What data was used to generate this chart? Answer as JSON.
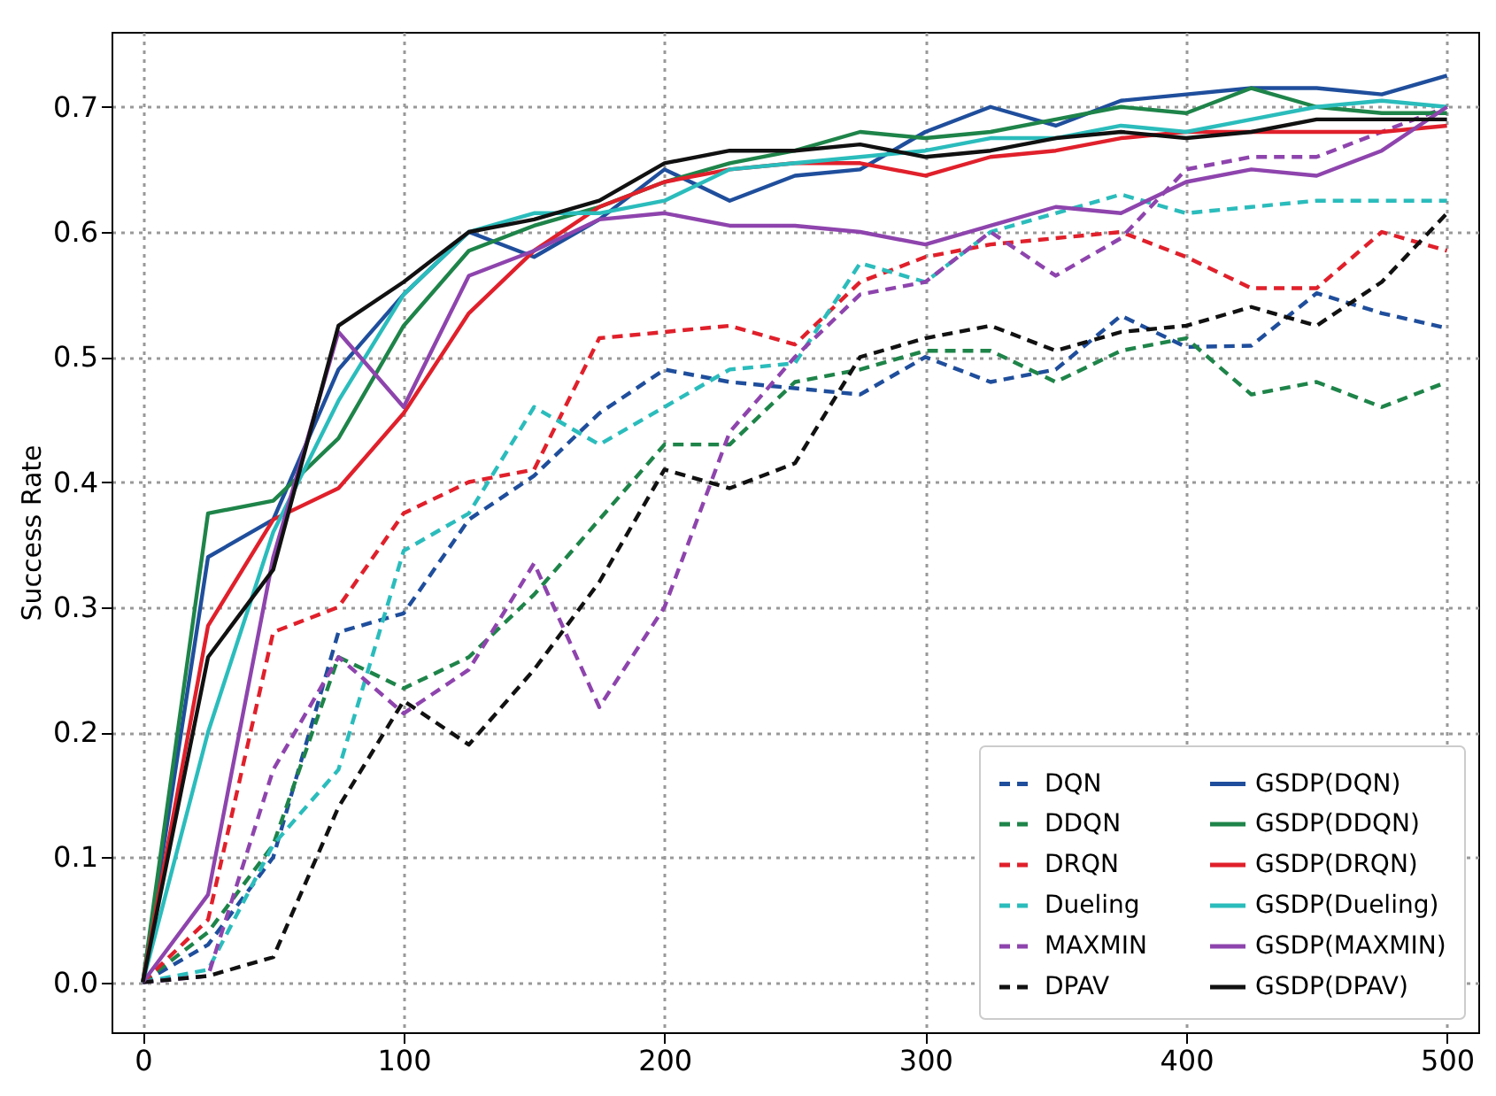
{
  "chart_data": {
    "type": "line",
    "ylabel": "Success Rate",
    "x": [
      0,
      25,
      50,
      75,
      100,
      125,
      150,
      175,
      200,
      225,
      250,
      275,
      300,
      325,
      350,
      375,
      400,
      425,
      450,
      475,
      500
    ],
    "xlim": [
      -12,
      512
    ],
    "xticks": [
      0,
      100,
      200,
      300,
      400,
      500
    ],
    "ylim": [
      -0.04,
      0.76
    ],
    "yticks": [
      {
        "value": 0,
        "label": "0.0"
      },
      {
        "value": 0.1,
        "label": "0.1"
      },
      {
        "value": 0.2,
        "label": "0.2"
      },
      {
        "value": 0.3,
        "label": "0.3"
      },
      {
        "value": 0.4,
        "label": "0.4"
      },
      {
        "value": 0.5,
        "label": "0.5"
      },
      {
        "value": 0.6,
        "label": "0.6"
      },
      {
        "value": 0.7,
        "label": "0.7"
      }
    ],
    "grid": true,
    "legend": "bottom right",
    "series": [
      {
        "name": "DQN",
        "color": "#1f4e9c",
        "line_style": "dashed",
        "values": [
          0,
          0.03,
          0.1,
          0.28,
          0.295,
          0.37,
          0.405,
          0.455,
          0.49,
          0.48,
          0.475,
          0.47,
          0.5,
          0.48,
          0.49,
          0.533,
          0.508,
          0.509,
          0.551,
          0.535,
          0.523
        ]
      },
      {
        "name": "DDQN",
        "color": "#1e8449",
        "line_style": "dashed",
        "values": [
          0,
          0.04,
          0.11,
          0.26,
          0.235,
          0.26,
          0.31,
          0.37,
          0.43,
          0.43,
          0.48,
          0.49,
          0.505,
          0.505,
          0.48,
          0.505,
          0.515,
          0.47,
          0.48,
          0.46,
          0.48
        ]
      },
      {
        "name": "DRQN",
        "color": "#e0202b",
        "line_style": "dashed",
        "values": [
          0,
          0.05,
          0.28,
          0.3,
          0.375,
          0.4,
          0.41,
          0.515,
          0.52,
          0.525,
          0.51,
          0.56,
          0.58,
          0.59,
          0.595,
          0.6,
          0.58,
          0.555,
          0.555,
          0.6,
          0.585
        ]
      },
      {
        "name": "Dueling",
        "color": "#2bbcbc",
        "line_style": "dashed",
        "values": [
          0,
          0.01,
          0.11,
          0.17,
          0.345,
          0.375,
          0.46,
          0.43,
          0.46,
          0.49,
          0.495,
          0.575,
          0.56,
          0.6,
          0.615,
          0.63,
          0.615,
          0.62,
          0.625,
          0.625,
          0.625
        ]
      },
      {
        "name": "MAXMIN",
        "color": "#8e44ad",
        "line_style": "dashed",
        "values": [
          0,
          0.005,
          0.17,
          0.26,
          0.215,
          0.25,
          0.335,
          0.22,
          0.3,
          0.44,
          0.5,
          0.55,
          0.56,
          0.6,
          0.565,
          0.595,
          0.65,
          0.66,
          0.66,
          0.68,
          0.7
        ]
      },
      {
        "name": "DPAV",
        "color": "#111111",
        "line_style": "dashed",
        "values": [
          0,
          0.005,
          0.02,
          0.14,
          0.225,
          0.19,
          0.25,
          0.32,
          0.41,
          0.395,
          0.415,
          0.5,
          0.515,
          0.525,
          0.505,
          0.52,
          0.525,
          0.54,
          0.525,
          0.56,
          0.615
        ]
      },
      {
        "name": "GSDP(DQN)",
        "color": "#1f4e9c",
        "line_style": "solid",
        "values": [
          0,
          0.34,
          0.37,
          0.49,
          0.55,
          0.6,
          0.58,
          0.61,
          0.65,
          0.625,
          0.645,
          0.65,
          0.68,
          0.7,
          0.685,
          0.705,
          0.71,
          0.715,
          0.715,
          0.71,
          0.725
        ]
      },
      {
        "name": "GSDP(DDQN)",
        "color": "#1e8449",
        "line_style": "solid",
        "values": [
          0,
          0.375,
          0.385,
          0.435,
          0.525,
          0.585,
          0.605,
          0.62,
          0.64,
          0.655,
          0.665,
          0.68,
          0.675,
          0.68,
          0.69,
          0.7,
          0.695,
          0.715,
          0.7,
          0.695,
          0.695
        ]
      },
      {
        "name": "GSDP(DRQN)",
        "color": "#e0202b",
        "line_style": "solid",
        "values": [
          0,
          0.285,
          0.37,
          0.395,
          0.455,
          0.535,
          0.585,
          0.62,
          0.64,
          0.65,
          0.655,
          0.655,
          0.645,
          0.66,
          0.665,
          0.675,
          0.68,
          0.68,
          0.68,
          0.68,
          0.685
        ]
      },
      {
        "name": "GSDP(Dueling)",
        "color": "#2bbcbc",
        "line_style": "solid",
        "values": [
          0,
          0.2,
          0.36,
          0.465,
          0.55,
          0.6,
          0.615,
          0.615,
          0.625,
          0.65,
          0.655,
          0.66,
          0.665,
          0.675,
          0.675,
          0.685,
          0.68,
          0.69,
          0.7,
          0.705,
          0.7
        ]
      },
      {
        "name": "GSDP(MAXMIN)",
        "color": "#8e44ad",
        "line_style": "solid",
        "values": [
          0,
          0.07,
          0.34,
          0.52,
          0.46,
          0.565,
          0.585,
          0.61,
          0.615,
          0.605,
          0.605,
          0.6,
          0.59,
          0.605,
          0.62,
          0.615,
          0.64,
          0.65,
          0.645,
          0.665,
          0.7
        ]
      },
      {
        "name": "GSDP(DPAV)",
        "color": "#111111",
        "line_style": "solid",
        "values": [
          0,
          0.26,
          0.33,
          0.525,
          0.56,
          0.6,
          0.61,
          0.625,
          0.655,
          0.665,
          0.665,
          0.67,
          0.66,
          0.665,
          0.675,
          0.68,
          0.675,
          0.68,
          0.69,
          0.69,
          0.69
        ]
      }
    ]
  }
}
